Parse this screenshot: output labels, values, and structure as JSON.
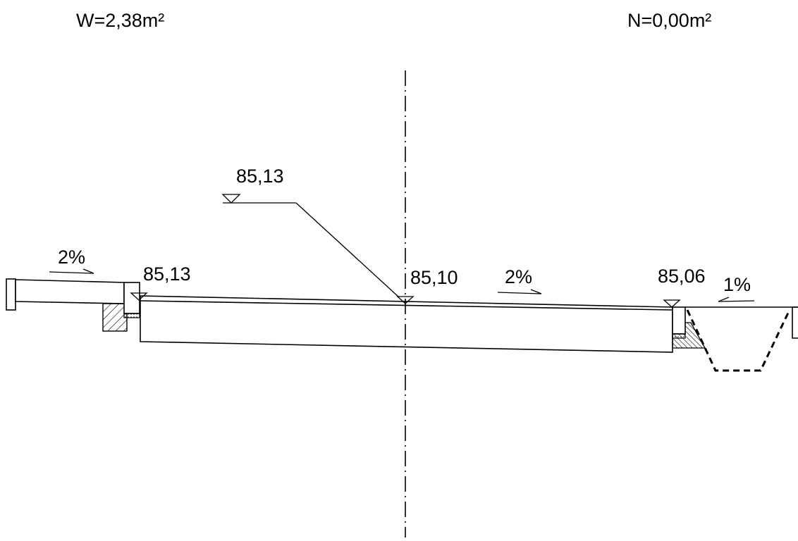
{
  "header": {
    "cut_area": "W=2,38m²",
    "fill_area": "N=0,00m²"
  },
  "levels": {
    "callout": "85,13",
    "left_edge": "85,13",
    "axis": "85,10",
    "right_edge": "85,06"
  },
  "slopes": {
    "sidewalk": "2%",
    "carriageway": "2%",
    "shoulder": "1%"
  }
}
